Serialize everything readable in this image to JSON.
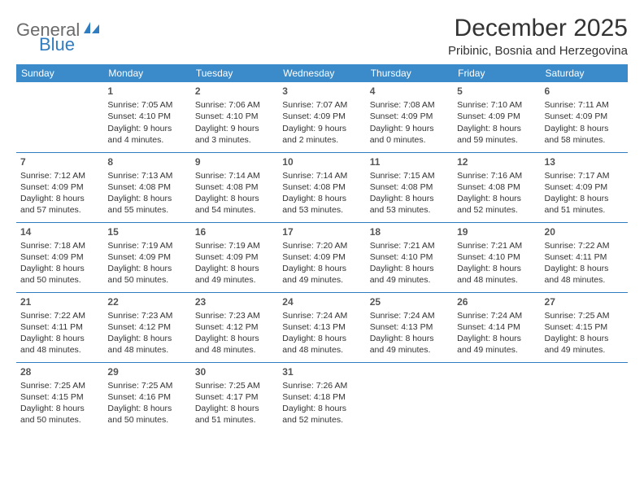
{
  "logo": {
    "word1": "General",
    "word2": "Blue"
  },
  "title": "December 2025",
  "location": "Pribinic, Bosnia and Herzegovina",
  "colors": {
    "header_bg": "#3b8bca",
    "header_text": "#ffffff",
    "accent": "#2f7cc0",
    "logo_gray": "#6b6b6b",
    "text": "#333333",
    "background": "#ffffff"
  },
  "day_headers": [
    "Sunday",
    "Monday",
    "Tuesday",
    "Wednesday",
    "Thursday",
    "Friday",
    "Saturday"
  ],
  "weeks": [
    [
      null,
      {
        "n": "1",
        "sr": "Sunrise: 7:05 AM",
        "ss": "Sunset: 4:10 PM",
        "d1": "Daylight: 9 hours",
        "d2": "and 4 minutes."
      },
      {
        "n": "2",
        "sr": "Sunrise: 7:06 AM",
        "ss": "Sunset: 4:10 PM",
        "d1": "Daylight: 9 hours",
        "d2": "and 3 minutes."
      },
      {
        "n": "3",
        "sr": "Sunrise: 7:07 AM",
        "ss": "Sunset: 4:09 PM",
        "d1": "Daylight: 9 hours",
        "d2": "and 2 minutes."
      },
      {
        "n": "4",
        "sr": "Sunrise: 7:08 AM",
        "ss": "Sunset: 4:09 PM",
        "d1": "Daylight: 9 hours",
        "d2": "and 0 minutes."
      },
      {
        "n": "5",
        "sr": "Sunrise: 7:10 AM",
        "ss": "Sunset: 4:09 PM",
        "d1": "Daylight: 8 hours",
        "d2": "and 59 minutes."
      },
      {
        "n": "6",
        "sr": "Sunrise: 7:11 AM",
        "ss": "Sunset: 4:09 PM",
        "d1": "Daylight: 8 hours",
        "d2": "and 58 minutes."
      }
    ],
    [
      {
        "n": "7",
        "sr": "Sunrise: 7:12 AM",
        "ss": "Sunset: 4:09 PM",
        "d1": "Daylight: 8 hours",
        "d2": "and 57 minutes."
      },
      {
        "n": "8",
        "sr": "Sunrise: 7:13 AM",
        "ss": "Sunset: 4:08 PM",
        "d1": "Daylight: 8 hours",
        "d2": "and 55 minutes."
      },
      {
        "n": "9",
        "sr": "Sunrise: 7:14 AM",
        "ss": "Sunset: 4:08 PM",
        "d1": "Daylight: 8 hours",
        "d2": "and 54 minutes."
      },
      {
        "n": "10",
        "sr": "Sunrise: 7:14 AM",
        "ss": "Sunset: 4:08 PM",
        "d1": "Daylight: 8 hours",
        "d2": "and 53 minutes."
      },
      {
        "n": "11",
        "sr": "Sunrise: 7:15 AM",
        "ss": "Sunset: 4:08 PM",
        "d1": "Daylight: 8 hours",
        "d2": "and 53 minutes."
      },
      {
        "n": "12",
        "sr": "Sunrise: 7:16 AM",
        "ss": "Sunset: 4:08 PM",
        "d1": "Daylight: 8 hours",
        "d2": "and 52 minutes."
      },
      {
        "n": "13",
        "sr": "Sunrise: 7:17 AM",
        "ss": "Sunset: 4:09 PM",
        "d1": "Daylight: 8 hours",
        "d2": "and 51 minutes."
      }
    ],
    [
      {
        "n": "14",
        "sr": "Sunrise: 7:18 AM",
        "ss": "Sunset: 4:09 PM",
        "d1": "Daylight: 8 hours",
        "d2": "and 50 minutes."
      },
      {
        "n": "15",
        "sr": "Sunrise: 7:19 AM",
        "ss": "Sunset: 4:09 PM",
        "d1": "Daylight: 8 hours",
        "d2": "and 50 minutes."
      },
      {
        "n": "16",
        "sr": "Sunrise: 7:19 AM",
        "ss": "Sunset: 4:09 PM",
        "d1": "Daylight: 8 hours",
        "d2": "and 49 minutes."
      },
      {
        "n": "17",
        "sr": "Sunrise: 7:20 AM",
        "ss": "Sunset: 4:09 PM",
        "d1": "Daylight: 8 hours",
        "d2": "and 49 minutes."
      },
      {
        "n": "18",
        "sr": "Sunrise: 7:21 AM",
        "ss": "Sunset: 4:10 PM",
        "d1": "Daylight: 8 hours",
        "d2": "and 49 minutes."
      },
      {
        "n": "19",
        "sr": "Sunrise: 7:21 AM",
        "ss": "Sunset: 4:10 PM",
        "d1": "Daylight: 8 hours",
        "d2": "and 48 minutes."
      },
      {
        "n": "20",
        "sr": "Sunrise: 7:22 AM",
        "ss": "Sunset: 4:11 PM",
        "d1": "Daylight: 8 hours",
        "d2": "and 48 minutes."
      }
    ],
    [
      {
        "n": "21",
        "sr": "Sunrise: 7:22 AM",
        "ss": "Sunset: 4:11 PM",
        "d1": "Daylight: 8 hours",
        "d2": "and 48 minutes."
      },
      {
        "n": "22",
        "sr": "Sunrise: 7:23 AM",
        "ss": "Sunset: 4:12 PM",
        "d1": "Daylight: 8 hours",
        "d2": "and 48 minutes."
      },
      {
        "n": "23",
        "sr": "Sunrise: 7:23 AM",
        "ss": "Sunset: 4:12 PM",
        "d1": "Daylight: 8 hours",
        "d2": "and 48 minutes."
      },
      {
        "n": "24",
        "sr": "Sunrise: 7:24 AM",
        "ss": "Sunset: 4:13 PM",
        "d1": "Daylight: 8 hours",
        "d2": "and 48 minutes."
      },
      {
        "n": "25",
        "sr": "Sunrise: 7:24 AM",
        "ss": "Sunset: 4:13 PM",
        "d1": "Daylight: 8 hours",
        "d2": "and 49 minutes."
      },
      {
        "n": "26",
        "sr": "Sunrise: 7:24 AM",
        "ss": "Sunset: 4:14 PM",
        "d1": "Daylight: 8 hours",
        "d2": "and 49 minutes."
      },
      {
        "n": "27",
        "sr": "Sunrise: 7:25 AM",
        "ss": "Sunset: 4:15 PM",
        "d1": "Daylight: 8 hours",
        "d2": "and 49 minutes."
      }
    ],
    [
      {
        "n": "28",
        "sr": "Sunrise: 7:25 AM",
        "ss": "Sunset: 4:15 PM",
        "d1": "Daylight: 8 hours",
        "d2": "and 50 minutes."
      },
      {
        "n": "29",
        "sr": "Sunrise: 7:25 AM",
        "ss": "Sunset: 4:16 PM",
        "d1": "Daylight: 8 hours",
        "d2": "and 50 minutes."
      },
      {
        "n": "30",
        "sr": "Sunrise: 7:25 AM",
        "ss": "Sunset: 4:17 PM",
        "d1": "Daylight: 8 hours",
        "d2": "and 51 minutes."
      },
      {
        "n": "31",
        "sr": "Sunrise: 7:26 AM",
        "ss": "Sunset: 4:18 PM",
        "d1": "Daylight: 8 hours",
        "d2": "and 52 minutes."
      },
      null,
      null,
      null
    ]
  ]
}
